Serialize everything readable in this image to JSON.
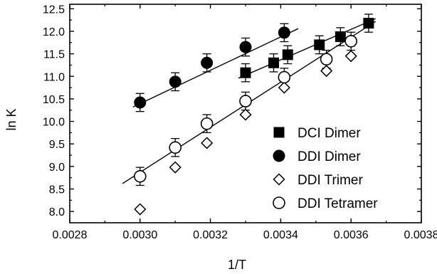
{
  "chart_data": {
    "type": "scatter",
    "title": "",
    "xlabel": "1/T",
    "ylabel": "ln K",
    "xlim": [
      0.0028,
      0.0038
    ],
    "ylim": [
      7.75,
      12.6
    ],
    "x_ticks": [
      "0.0028",
      "0.0030",
      "0.0032",
      "0.0034",
      "0.0036",
      "0.0038"
    ],
    "y_ticks": [
      "8.0",
      "8.5",
      "9.0",
      "9.5",
      "10.0",
      "10.5",
      "11.0",
      "11.5",
      "12.0",
      "12.5"
    ],
    "grid": false,
    "legend_position": "bottom-right",
    "series": [
      {
        "name": "DCI Dimer",
        "marker": "filled-square",
        "color": "#000000",
        "points": [
          {
            "x": 0.0033,
            "y": 11.08
          },
          {
            "x": 0.00338,
            "y": 11.3
          },
          {
            "x": 0.00342,
            "y": 11.48
          },
          {
            "x": 0.00351,
            "y": 11.7
          },
          {
            "x": 0.00357,
            "y": 11.88
          },
          {
            "x": 0.00365,
            "y": 12.18
          }
        ],
        "error": 0.2,
        "fit": {
          "x": [
            0.00328,
            0.00367
          ],
          "y": [
            10.96,
            12.28
          ]
        }
      },
      {
        "name": "DDI Dimer",
        "marker": "filled-circle",
        "color": "#000000",
        "points": [
          {
            "x": 0.003,
            "y": 10.42
          },
          {
            "x": 0.0031,
            "y": 10.88
          },
          {
            "x": 0.00319,
            "y": 11.3
          },
          {
            "x": 0.0033,
            "y": 11.65
          },
          {
            "x": 0.00341,
            "y": 11.97
          }
        ],
        "error": 0.2,
        "fit": {
          "x": [
            0.00298,
            0.00345
          ],
          "y": [
            10.32,
            12.06
          ]
        }
      },
      {
        "name": "DDI Trimer",
        "marker": "open-diamond",
        "color": "#000000",
        "points": [
          {
            "x": 0.003,
            "y": 8.05
          },
          {
            "x": 0.0031,
            "y": 8.98
          },
          {
            "x": 0.00319,
            "y": 9.52
          },
          {
            "x": 0.0033,
            "y": 10.15
          },
          {
            "x": 0.00341,
            "y": 10.75
          },
          {
            "x": 0.00353,
            "y": 11.12
          },
          {
            "x": 0.0036,
            "y": 11.45
          }
        ]
      },
      {
        "name": "DDI Tetramer",
        "marker": "open-circle",
        "color": "#000000",
        "points": [
          {
            "x": 0.003,
            "y": 8.78
          },
          {
            "x": 0.0031,
            "y": 9.42
          },
          {
            "x": 0.00319,
            "y": 9.95
          },
          {
            "x": 0.0033,
            "y": 10.45
          },
          {
            "x": 0.00341,
            "y": 10.98
          },
          {
            "x": 0.00353,
            "y": 11.38
          },
          {
            "x": 0.0036,
            "y": 11.78
          }
        ],
        "error": 0.2,
        "fit": {
          "x": [
            0.00295,
            0.00367
          ],
          "y": [
            8.62,
            12.22
          ]
        }
      }
    ]
  }
}
